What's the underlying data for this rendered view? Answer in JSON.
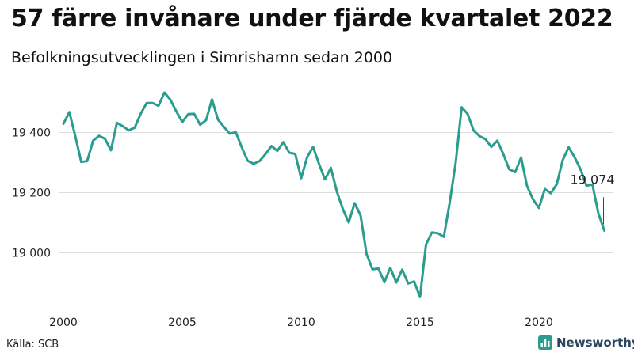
{
  "header": {
    "title": "57 färre invånare under fjärde kvartalet 2022",
    "subtitle": "Befolkningsutvecklingen i Simrishamn sedan 2000"
  },
  "footer": {
    "source": "Källa: SCB",
    "brand_name": "Newsworthy",
    "brand_icon": "bar-chart-logo-icon"
  },
  "colors": {
    "line": "#2a9d8f",
    "grid": "#dddddd",
    "brand": "#2b4660"
  },
  "chart_data": {
    "type": "line",
    "title": "57 färre invånare under fjärde kvartalet 2022",
    "subtitle": "Befolkningsutvecklingen i Simrishamn sedan 2000",
    "xlabel": "",
    "ylabel": "",
    "x_unit": "year (quarterly observations)",
    "xlim": [
      2000,
      2023
    ],
    "ylim": [
      18850,
      19560
    ],
    "x_ticks": [
      2000,
      2005,
      2010,
      2015,
      2020
    ],
    "x_tick_labels": [
      "2000",
      "2005",
      "2010",
      "2015",
      "2020"
    ],
    "y_ticks": [
      19000,
      19200,
      19400
    ],
    "y_tick_labels": [
      "19 000",
      "19 200",
      "19 400"
    ],
    "grid": "horizontal",
    "legend": "none",
    "series": [
      {
        "values": [
          [
            2000.0,
            19429
          ],
          [
            2000.25,
            19468
          ],
          [
            2000.5,
            19388
          ],
          [
            2000.75,
            19302
          ],
          [
            2001.0,
            19305
          ],
          [
            2001.25,
            19373
          ],
          [
            2001.5,
            19389
          ],
          [
            2001.75,
            19379
          ],
          [
            2002.0,
            19341
          ],
          [
            2002.25,
            19432
          ],
          [
            2002.5,
            19421
          ],
          [
            2002.75,
            19407
          ],
          [
            2003.0,
            19416
          ],
          [
            2003.25,
            19462
          ],
          [
            2003.5,
            19498
          ],
          [
            2003.75,
            19498
          ],
          [
            2004.0,
            19489
          ],
          [
            2004.25,
            19533
          ],
          [
            2004.5,
            19509
          ],
          [
            2004.75,
            19470
          ],
          [
            2005.0,
            19435
          ],
          [
            2005.25,
            19461
          ],
          [
            2005.5,
            19462
          ],
          [
            2005.75,
            19426
          ],
          [
            2006.0,
            19441
          ],
          [
            2006.25,
            19510
          ],
          [
            2006.5,
            19443
          ],
          [
            2006.75,
            19419
          ],
          [
            2007.0,
            19396
          ],
          [
            2007.25,
            19401
          ],
          [
            2007.5,
            19351
          ],
          [
            2007.75,
            19306
          ],
          [
            2008.0,
            19296
          ],
          [
            2008.25,
            19305
          ],
          [
            2008.5,
            19328
          ],
          [
            2008.75,
            19355
          ],
          [
            2009.0,
            19339
          ],
          [
            2009.25,
            19368
          ],
          [
            2009.5,
            19333
          ],
          [
            2009.75,
            19329
          ],
          [
            2010.0,
            19248
          ],
          [
            2010.25,
            19318
          ],
          [
            2010.5,
            19352
          ],
          [
            2010.75,
            19296
          ],
          [
            2011.0,
            19244
          ],
          [
            2011.25,
            19282
          ],
          [
            2011.5,
            19204
          ],
          [
            2011.75,
            19146
          ],
          [
            2012.0,
            19101
          ],
          [
            2012.25,
            19165
          ],
          [
            2012.5,
            19124
          ],
          [
            2012.75,
            18996
          ],
          [
            2013.0,
            18945
          ],
          [
            2013.25,
            18948
          ],
          [
            2013.5,
            18902
          ],
          [
            2013.75,
            18950
          ],
          [
            2014.0,
            18901
          ],
          [
            2014.25,
            18944
          ],
          [
            2014.5,
            18898
          ],
          [
            2014.75,
            18905
          ],
          [
            2015.0,
            18853
          ],
          [
            2015.25,
            19027
          ],
          [
            2015.5,
            19068
          ],
          [
            2015.75,
            19065
          ],
          [
            2016.0,
            19053
          ],
          [
            2016.25,
            19168
          ],
          [
            2016.5,
            19300
          ],
          [
            2016.75,
            19484
          ],
          [
            2017.0,
            19462
          ],
          [
            2017.25,
            19407
          ],
          [
            2017.5,
            19388
          ],
          [
            2017.75,
            19378
          ],
          [
            2018.0,
            19352
          ],
          [
            2018.25,
            19373
          ],
          [
            2018.5,
            19329
          ],
          [
            2018.75,
            19278
          ],
          [
            2019.0,
            19268
          ],
          [
            2019.25,
            19317
          ],
          [
            2019.5,
            19222
          ],
          [
            2019.75,
            19178
          ],
          [
            2020.0,
            19149
          ],
          [
            2020.25,
            19212
          ],
          [
            2020.5,
            19198
          ],
          [
            2020.75,
            19228
          ],
          [
            2021.0,
            19308
          ],
          [
            2021.25,
            19351
          ],
          [
            2021.5,
            19318
          ],
          [
            2021.75,
            19278
          ],
          [
            2022.0,
            19223
          ],
          [
            2022.25,
            19227
          ],
          [
            2022.5,
            19131
          ],
          [
            2022.75,
            19074
          ]
        ]
      }
    ],
    "annotations": [
      {
        "x": 2022.75,
        "y": 19074,
        "text": "19 074"
      }
    ]
  }
}
